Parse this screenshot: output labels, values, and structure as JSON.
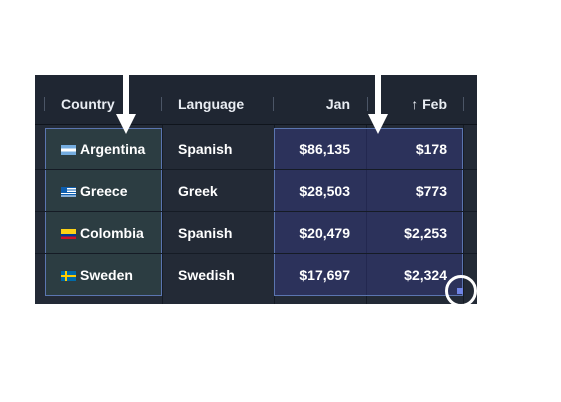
{
  "table": {
    "columns": [
      "Country",
      "Language",
      "Jan",
      "Feb"
    ],
    "sort_indicator": "↑",
    "rows": [
      {
        "country": "Argentina",
        "flag": "argentina-flag-icon",
        "language": "Spanish",
        "jan": "$86,135",
        "feb": "$178"
      },
      {
        "country": "Greece",
        "flag": "greece-flag-icon",
        "language": "Greek",
        "jan": "$28,503",
        "feb": "$773"
      },
      {
        "country": "Colombia",
        "flag": "colombia-flag-icon",
        "language": "Spanish",
        "jan": "$20,479",
        "feb": "$2,253"
      },
      {
        "country": "Sweden",
        "flag": "sweden-flag-icon",
        "language": "Swedish",
        "jan": "$17,697",
        "feb": "$2,324"
      }
    ]
  },
  "colors": {
    "background": "#232a36",
    "header": "#1f2632",
    "selection_border": "#5b75b0",
    "fill_handle": "#6f84e6"
  }
}
